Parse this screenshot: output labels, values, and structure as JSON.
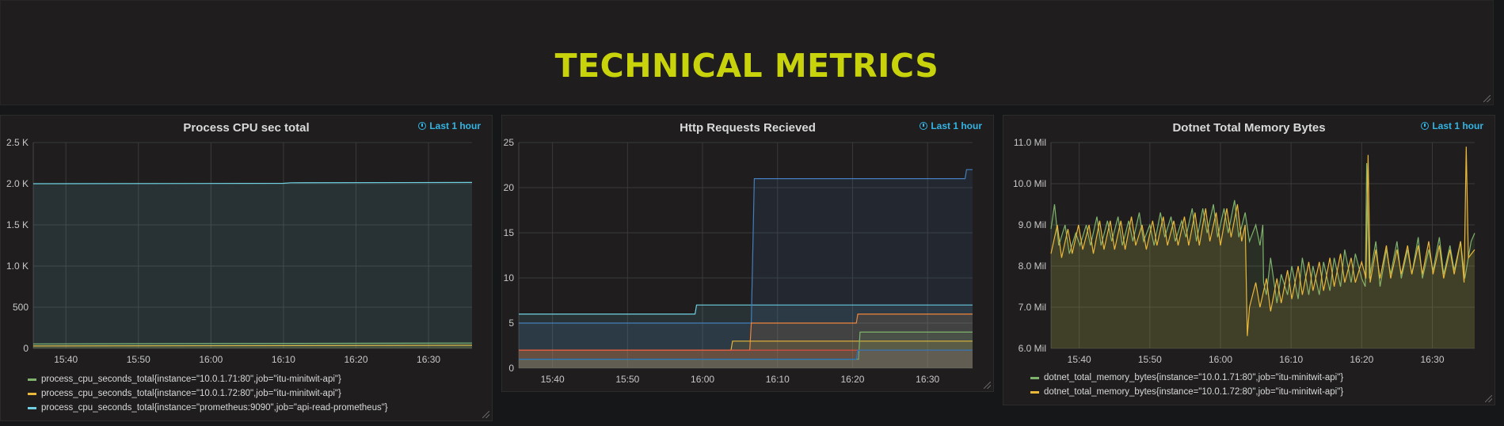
{
  "header": {
    "title": "TECHNICAL METRICS"
  },
  "panels": [
    {
      "title": "Process CPU sec total",
      "time_range": "Last 1 hour",
      "legend": [
        {
          "label": "process_cpu_seconds_total{instance=\"10.0.1.71:80\",job=\"itu-minitwit-api\"}",
          "color": "#7eb26d"
        },
        {
          "label": "process_cpu_seconds_total{instance=\"10.0.1.72:80\",job=\"itu-minitwit-api\"}",
          "color": "#eab839"
        },
        {
          "label": "process_cpu_seconds_total{instance=\"prometheus:9090\",job=\"api-read-prometheus\"}",
          "color": "#6ed0e0"
        }
      ]
    },
    {
      "title": "Http Requests Recieved",
      "time_range": "Last 1 hour",
      "legend": []
    },
    {
      "title": "Dotnet Total Memory Bytes",
      "time_range": "Last 1 hour",
      "legend": [
        {
          "label": "dotnet_total_memory_bytes{instance=\"10.0.1.71:80\",job=\"itu-minitwit-api\"}",
          "color": "#7eb26d"
        },
        {
          "label": "dotnet_total_memory_bytes{instance=\"10.0.1.72:80\",job=\"itu-minitwit-api\"}",
          "color": "#eab839"
        }
      ]
    }
  ],
  "chart_data": [
    {
      "type": "area",
      "title": "Process CPU sec total",
      "x_ticks": [
        "15:40",
        "15:50",
        "16:00",
        "16:10",
        "16:20",
        "16:30"
      ],
      "y_ticks": [
        "0",
        "500",
        "1.0 K",
        "1.5 K",
        "2.0 K",
        "2.5 K"
      ],
      "ylim": [
        0,
        2500
      ],
      "xlim_minutes": [
        35.5,
        96
      ],
      "grid": true,
      "legend_placement": "bottom",
      "series": [
        {
          "name": "process_cpu_seconds_total{instance=\"10.0.1.71:80\",job=\"itu-minitwit-api\"}",
          "color": "#7eb26d",
          "x": [
            35.5,
            96
          ],
          "y": [
            55,
            65
          ]
        },
        {
          "name": "process_cpu_seconds_total{instance=\"10.0.1.72:80\",job=\"itu-minitwit-api\"}",
          "color": "#eab839",
          "x": [
            35.5,
            96
          ],
          "y": [
            30,
            38
          ]
        },
        {
          "name": "process_cpu_seconds_total{instance=\"prometheus:9090\",job=\"api-read-prometheus\"}",
          "color": "#6ed0e0",
          "x": [
            35.5,
            70,
            71,
            96
          ],
          "y": [
            2000,
            2005,
            2012,
            2015
          ]
        }
      ]
    },
    {
      "type": "area",
      "title": "Http Requests Recieved",
      "x_ticks": [
        "15:40",
        "15:50",
        "16:00",
        "16:10",
        "16:20",
        "16:30"
      ],
      "y_ticks": [
        "0",
        "5",
        "10",
        "15",
        "20",
        "25"
      ],
      "ylim": [
        0,
        25
      ],
      "xlim_minutes": [
        35.5,
        96
      ],
      "grid": true,
      "legend_placement": "none",
      "series": [
        {
          "color": "#6ed0e0",
          "x": [
            35.5,
            59,
            59.2,
            96
          ],
          "y": [
            6,
            6,
            7,
            7
          ]
        },
        {
          "color": "#447ebc",
          "x": [
            35.5,
            66.5,
            66.9,
            95,
            95.2,
            96
          ],
          "y": [
            5,
            5,
            21,
            21,
            22,
            22
          ]
        },
        {
          "color": "#ef843c",
          "x": [
            35.5,
            66.3,
            66.5,
            80.5,
            80.7,
            96
          ],
          "y": [
            2,
            2,
            5,
            5,
            6,
            6
          ]
        },
        {
          "color": "#eab839",
          "x": [
            35.5,
            63.8,
            64,
            96
          ],
          "y": [
            2,
            2,
            3,
            3
          ]
        },
        {
          "color": "#7eb26d",
          "x": [
            35.5,
            80.8,
            81,
            96
          ],
          "y": [
            1,
            1,
            4,
            4
          ]
        },
        {
          "color": "#e24d42",
          "x": [
            35.5,
            96
          ],
          "y": [
            2,
            2
          ]
        },
        {
          "color": "#1f78c1",
          "x": [
            35.5,
            80.5,
            80.7,
            96
          ],
          "y": [
            1,
            1,
            2,
            2
          ]
        }
      ]
    },
    {
      "type": "area",
      "title": "Dotnet Total Memory Bytes",
      "x_ticks": [
        "15:40",
        "15:50",
        "16:00",
        "16:10",
        "16:20",
        "16:30"
      ],
      "y_ticks": [
        "6.0 Mil",
        "7.0 Mil",
        "8.0 Mil",
        "9.0 Mil",
        "10.0 Mil",
        "11.0 Mil"
      ],
      "ylim": [
        6000000,
        11000000
      ],
      "xlim_minutes": [
        36,
        96
      ],
      "grid": true,
      "legend_placement": "bottom",
      "series": [
        {
          "name": "dotnet_total_memory_bytes{instance=\"10.0.1.71:80\",job=\"itu-minitwit-api\"}",
          "color": "#7eb26d",
          "x": [
            36.0,
            36.5,
            37.1,
            38.0,
            38.6,
            39.5,
            40.1,
            41.0,
            41.6,
            42.5,
            43.1,
            44.0,
            44.6,
            45.5,
            46.1,
            47.0,
            47.6,
            48.5,
            49.1,
            50.0,
            50.6,
            51.5,
            52.1,
            53.0,
            53.6,
            54.5,
            55.1,
            56.0,
            56.6,
            57.5,
            58.1,
            59.0,
            59.6,
            60.5,
            61.1,
            62.0,
            62.6,
            63.5,
            64.1,
            65.0,
            65.6,
            66.0,
            66.1,
            66.5,
            67.1,
            68.0,
            68.6,
            69.5,
            70.1,
            71.0,
            71.6,
            72.5,
            73.1,
            74.0,
            74.6,
            75.5,
            76.1,
            77.0,
            77.6,
            78.5,
            79.1,
            80.0,
            80.5,
            80.7,
            81.1,
            82.0,
            82.6,
            83.5,
            84.1,
            85.0,
            85.6,
            86.5,
            87.1,
            88.0,
            88.6,
            89.5,
            90.1,
            91.0,
            91.6,
            92.5,
            93.1,
            94.0,
            94.6,
            95.5,
            96.0
          ],
          "y": [
            8900000,
            9500000,
            8500000,
            9000000,
            8300000,
            8800000,
            8500000,
            9000000,
            8500000,
            9200000,
            8500000,
            9100000,
            8600000,
            9200000,
            8500000,
            9100000,
            8600000,
            9300000,
            8600000,
            9000000,
            8500000,
            9300000,
            8700000,
            9200000,
            8600000,
            9100000,
            8700000,
            9400000,
            8600000,
            9400000,
            8800000,
            9500000,
            8700000,
            9400000,
            8800000,
            9600000,
            8700000,
            9300000,
            8600000,
            9000000,
            8500000,
            9000000,
            7600000,
            7300000,
            8200000,
            7100000,
            7800000,
            7300000,
            8000000,
            7200000,
            8200000,
            7300000,
            8000000,
            7300000,
            8100000,
            7400000,
            8200000,
            7500000,
            8400000,
            7600000,
            8300000,
            7700000,
            7500000,
            10500000,
            7700000,
            8600000,
            7500000,
            8400000,
            7800000,
            8600000,
            7700000,
            8400000,
            7800000,
            8700000,
            7700000,
            8400000,
            7900000,
            8700000,
            7800000,
            8500000,
            7900000,
            8600000,
            7700000,
            8600000,
            8800000
          ]
        },
        {
          "name": "dotnet_total_memory_bytes{instance=\"10.0.1.72:80\",job=\"itu-minitwit-api\"}",
          "color": "#eab839",
          "x": [
            36.0,
            36.9,
            37.5,
            38.4,
            39.0,
            39.9,
            40.5,
            41.4,
            42.0,
            42.9,
            43.5,
            44.4,
            45.0,
            45.9,
            46.5,
            47.4,
            48.0,
            48.9,
            49.5,
            50.4,
            51.0,
            51.9,
            52.5,
            53.4,
            54.0,
            54.9,
            55.5,
            56.4,
            57.0,
            57.9,
            58.5,
            59.4,
            60.0,
            60.9,
            61.5,
            62.4,
            63.0,
            63.5,
            63.8,
            64.1,
            65.0,
            65.6,
            66.5,
            67.1,
            68.0,
            68.6,
            69.5,
            70.1,
            71.0,
            71.6,
            72.5,
            73.1,
            74.0,
            74.6,
            75.5,
            76.1,
            77.0,
            77.6,
            78.5,
            79.1,
            80.0,
            80.6,
            80.9,
            81.2,
            82.0,
            82.6,
            83.5,
            84.1,
            85.0,
            85.6,
            86.5,
            87.1,
            88.0,
            88.6,
            89.5,
            90.1,
            91.0,
            91.6,
            92.5,
            93.1,
            94.0,
            94.5,
            94.8,
            95.1,
            96.0
          ],
          "y": [
            8300000,
            9000000,
            8200000,
            8900000,
            8300000,
            9000000,
            8400000,
            9000000,
            8300000,
            9100000,
            8400000,
            9100000,
            8400000,
            9100000,
            8400000,
            9200000,
            8500000,
            9000000,
            8400000,
            9100000,
            8500000,
            9200000,
            8500000,
            9100000,
            8500000,
            9200000,
            8500000,
            9300000,
            8500000,
            9400000,
            8600000,
            9300000,
            8500000,
            9400000,
            8700000,
            9500000,
            8600000,
            9000000,
            6300000,
            7000000,
            7600000,
            7000000,
            7700000,
            6900000,
            7700000,
            7100000,
            7900000,
            7200000,
            8000000,
            7300000,
            8100000,
            7400000,
            8100000,
            7400000,
            8200000,
            7500000,
            8300000,
            7600000,
            8200000,
            7600000,
            8100000,
            7700000,
            10700000,
            7600000,
            8400000,
            7700000,
            8500000,
            7700000,
            8400000,
            7800000,
            8500000,
            7800000,
            8500000,
            7800000,
            8600000,
            7800000,
            8500000,
            7700000,
            8400000,
            7800000,
            8600000,
            7600000,
            10900000,
            8200000,
            8400000
          ]
        }
      ]
    }
  ]
}
